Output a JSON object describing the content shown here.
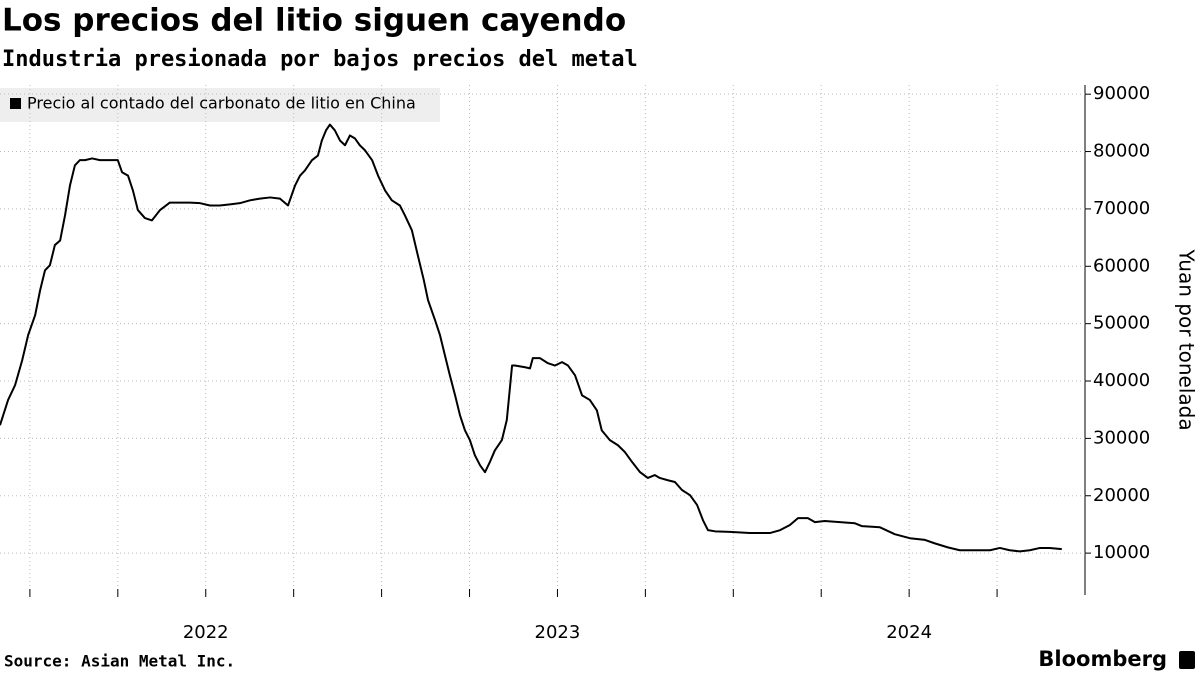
{
  "chart_data": {
    "type": "line",
    "title": "Los precios del litio siguen cayendo",
    "subtitle": "Industria presionada por bajos precios del metal",
    "y_label": "Yuan por tonelada",
    "source": "Source: Asian Metal Inc.",
    "brand": "Bloomberg",
    "grid": true,
    "legend_position": "upper left",
    "ylim": [
      2700,
      91600
    ],
    "yticks": [
      10000,
      20000,
      30000,
      40000,
      50000,
      60000,
      70000,
      80000,
      90000
    ],
    "xlim": [
      2021.915,
      2025.0
    ],
    "xticks": [
      2022,
      2022.25,
      2022.5,
      2022.75,
      2023,
      2023.25,
      2023.5,
      2023.75,
      2024,
      2024.25,
      2024.5,
      2024.75
    ],
    "year_labels": [
      {
        "value": 2022,
        "label": "2022"
      },
      {
        "value": 2023,
        "label": "2023"
      },
      {
        "value": 2024,
        "label": "2024"
      }
    ],
    "x": [
      2021.915,
      2021.938,
      2021.958,
      2021.978,
      2021.995,
      2022.015,
      2022.029,
      2022.043,
      2022.057,
      2022.071,
      2022.086,
      2022.1,
      2022.114,
      2022.128,
      2022.142,
      2022.157,
      2022.177,
      2022.199,
      2022.228,
      2022.25,
      2022.262,
      2022.279,
      2022.293,
      2022.307,
      2022.327,
      2022.347,
      2022.37,
      2022.398,
      2022.427,
      2022.455,
      2022.484,
      2022.512,
      2022.54,
      2022.569,
      2022.597,
      2022.626,
      2022.654,
      2022.683,
      2022.711,
      2022.734,
      2022.754,
      2022.768,
      2022.782,
      2022.802,
      2022.819,
      2022.83,
      2022.842,
      2022.853,
      2022.867,
      2022.882,
      2022.896,
      2022.91,
      2022.924,
      2022.938,
      2022.953,
      2022.973,
      2022.99,
      2023.01,
      2023.029,
      2023.052,
      2023.066,
      2023.086,
      2023.103,
      2023.12,
      2023.132,
      2023.152,
      2023.166,
      2023.18,
      2023.194,
      2023.209,
      2023.223,
      2023.237,
      2023.251,
      2023.265,
      2023.28,
      2023.294,
      2023.308,
      2023.322,
      2023.342,
      2023.356,
      2023.371,
      2023.379,
      2023.408,
      2023.422,
      2023.43,
      2023.45,
      2023.473,
      2023.493,
      2023.513,
      2023.53,
      2023.55,
      2023.57,
      2023.592,
      2023.612,
      2023.626,
      2023.649,
      2023.672,
      2023.692,
      2023.712,
      2023.735,
      2023.757,
      2023.777,
      2023.791,
      2023.814,
      2023.834,
      2023.854,
      2023.877,
      2023.897,
      2023.914,
      2023.928,
      2023.948,
      2023.99,
      2024.047,
      2024.104,
      2024.133,
      2024.161,
      2024.184,
      2024.212,
      2024.232,
      2024.26,
      2024.303,
      2024.346,
      2024.366,
      2024.417,
      2024.459,
      2024.502,
      2024.545,
      2024.573,
      2024.61,
      2024.644,
      2024.687,
      2024.73,
      2024.758,
      2024.786,
      2024.815,
      2024.843,
      2024.872,
      2024.9,
      2024.934
    ],
    "series": [
      {
        "name": "Precio al contado del carbonato de litio en China",
        "color": "#000000",
        "values": [
          32300,
          36700,
          39300,
          43600,
          48000,
          51500,
          55800,
          59300,
          60200,
          63700,
          64500,
          68900,
          74100,
          77600,
          78500,
          78500,
          78800,
          78500,
          78500,
          78500,
          76400,
          75800,
          73200,
          69800,
          68400,
          68000,
          69800,
          71100,
          71100,
          71100,
          71000,
          70600,
          70600,
          70800,
          71000,
          71500,
          71800,
          72000,
          71800,
          70600,
          74100,
          75800,
          76700,
          78500,
          79300,
          81900,
          83700,
          84700,
          83700,
          81900,
          81100,
          82800,
          82300,
          81100,
          80200,
          78500,
          75800,
          73200,
          71500,
          70600,
          68900,
          66300,
          61900,
          57600,
          54100,
          50600,
          48000,
          44500,
          41000,
          37500,
          34000,
          31400,
          29700,
          27100,
          25300,
          24100,
          25900,
          27900,
          29700,
          33200,
          42700,
          42700,
          42400,
          42200,
          44000,
          44000,
          43100,
          42700,
          43300,
          42700,
          41000,
          37500,
          36700,
          34900,
          31400,
          29700,
          28800,
          27600,
          25900,
          24100,
          23100,
          23600,
          23100,
          22700,
          22400,
          21000,
          20100,
          18400,
          15700,
          14000,
          13800,
          13700,
          13500,
          13500,
          14000,
          14900,
          16100,
          16100,
          15400,
          15600,
          15400,
          15200,
          14700,
          14500,
          13300,
          12600,
          12300,
          11700,
          11000,
          10500,
          10500,
          10500,
          10900,
          10500,
          10300,
          10500,
          10900,
          10900,
          10700
        ]
      }
    ]
  }
}
